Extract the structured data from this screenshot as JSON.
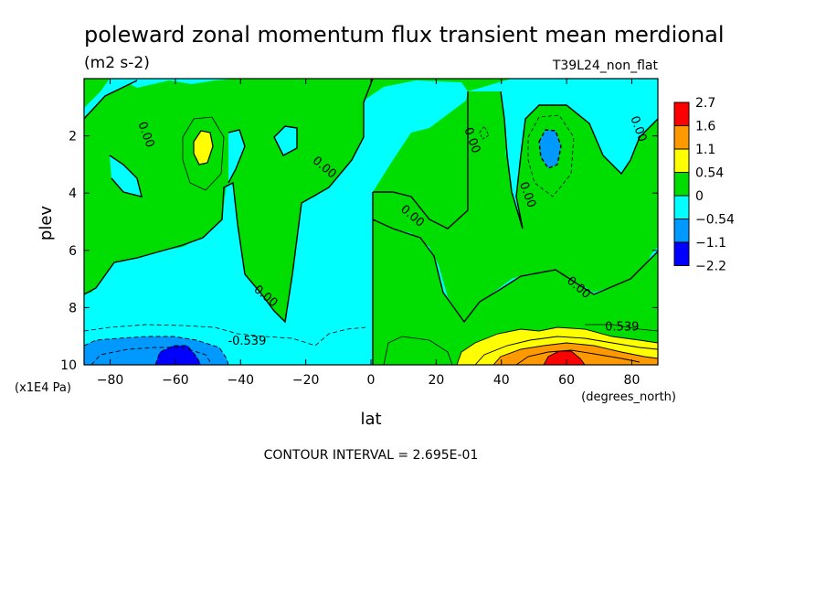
{
  "chart_data": {
    "type": "contour",
    "title": "poleward zonal momentum flux transient mean merdional",
    "units": "(m2 s-2)",
    "run_label": "T39L24_non_flat",
    "xlabel": "lat",
    "ylabel": "plev",
    "x_units": "(degrees_north)",
    "y_units": "(x1E4 Pa)",
    "xlim": [
      -88,
      88
    ],
    "ylim": [
      10,
      0
    ],
    "x_ticks": [
      -80,
      -60,
      -40,
      -20,
      0,
      20,
      40,
      60,
      80
    ],
    "x_tick_labels": [
      "−80",
      "−60",
      "−40",
      "−20",
      "0",
      "20",
      "40",
      "60",
      "80"
    ],
    "y_ticks": [
      2,
      4,
      6,
      8,
      10
    ],
    "y_tick_labels": [
      "2",
      "4",
      "6",
      "8",
      "10"
    ],
    "contour_interval_text": "CONTOUR INTERVAL = 2.695E-01",
    "contour_labels": [
      {
        "text": "0.00",
        "x": -70,
        "y": 2.0
      },
      {
        "text": "0.00",
        "x": -15,
        "y": 3.2
      },
      {
        "text": "0.00",
        "x": 12,
        "y": 4.9
      },
      {
        "text": "0.00",
        "x": 30,
        "y": 2.2
      },
      {
        "text": "0.00",
        "x": 47,
        "y": 4.1
      },
      {
        "text": "0.00",
        "x": 81,
        "y": 1.8
      },
      {
        "text": "0.00",
        "x": -33,
        "y": 7.7
      },
      {
        "text": "0.00",
        "x": 63,
        "y": 7.4
      },
      {
        "text": "-0.539",
        "x": -38,
        "y": 9.3
      },
      {
        "text": "0.539",
        "x": 77,
        "y": 8.8
      }
    ],
    "colorbar": {
      "levels": [
        "2.7",
        "1.6",
        "1.1",
        "0.54",
        "0",
        "−0.54",
        "−1.1",
        "−2.2"
      ],
      "colors": [
        "#ff0000",
        "#ff9900",
        "#ffff00",
        "#00dd00",
        "#00ffff",
        "#0099ff",
        "#0000ff"
      ]
    },
    "fill_colors": {
      "strong_pos": "#ff0000",
      "pos2": "#ff9900",
      "pos1": "#ffff00",
      "weak_pos": "#00dd00",
      "weak_neg": "#00ffff",
      "neg1": "#0099ff",
      "neg2": "#0000ff"
    }
  }
}
